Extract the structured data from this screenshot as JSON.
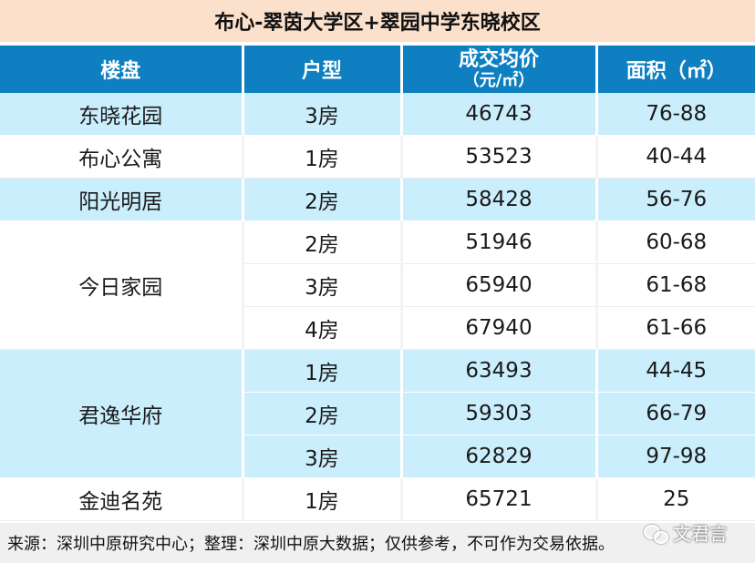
{
  "title": "布心-翠茵大学区+翠园中学东晓校区",
  "headers": {
    "name": "楼盘",
    "type": "户型",
    "price_main": "成交均价",
    "price_unit": "（元/㎡）",
    "area": "面积（㎡）"
  },
  "rows": [
    {
      "name": "东晓花园",
      "type": "3房",
      "price": "46743",
      "area": "76-88"
    },
    {
      "name": "布心公寓",
      "type": "1房",
      "price": "53523",
      "area": "40-44"
    },
    {
      "name": "阳光明居",
      "type": "2房",
      "price": "58428",
      "area": "56-76"
    },
    {
      "name": "今日家园",
      "type": "2房",
      "price": "51946",
      "area": "60-68"
    },
    {
      "name": "",
      "type": "3房",
      "price": "65940",
      "area": "61-68"
    },
    {
      "name": "",
      "type": "4房",
      "price": "67940",
      "area": "61-66"
    },
    {
      "name": "君逸华府",
      "type": "1房",
      "price": "63493",
      "area": "44-45"
    },
    {
      "name": "",
      "type": "2房",
      "price": "59303",
      "area": "66-79"
    },
    {
      "name": "",
      "type": "3房",
      "price": "62829",
      "area": "97-98"
    },
    {
      "name": "金迪名苑",
      "type": "1房",
      "price": "65721",
      "area": "25"
    }
  ],
  "footer": "来源：深圳中原研究中心；整理：深圳中原大数据；仅供参考，不可作为交易依据。",
  "watermark": "文君言",
  "colors": {
    "title_bg": "#fbe0cc",
    "header_bg": "#0e7fc1",
    "row_blue": "#cbeefc",
    "footer_bg": "#f0f0f0"
  }
}
